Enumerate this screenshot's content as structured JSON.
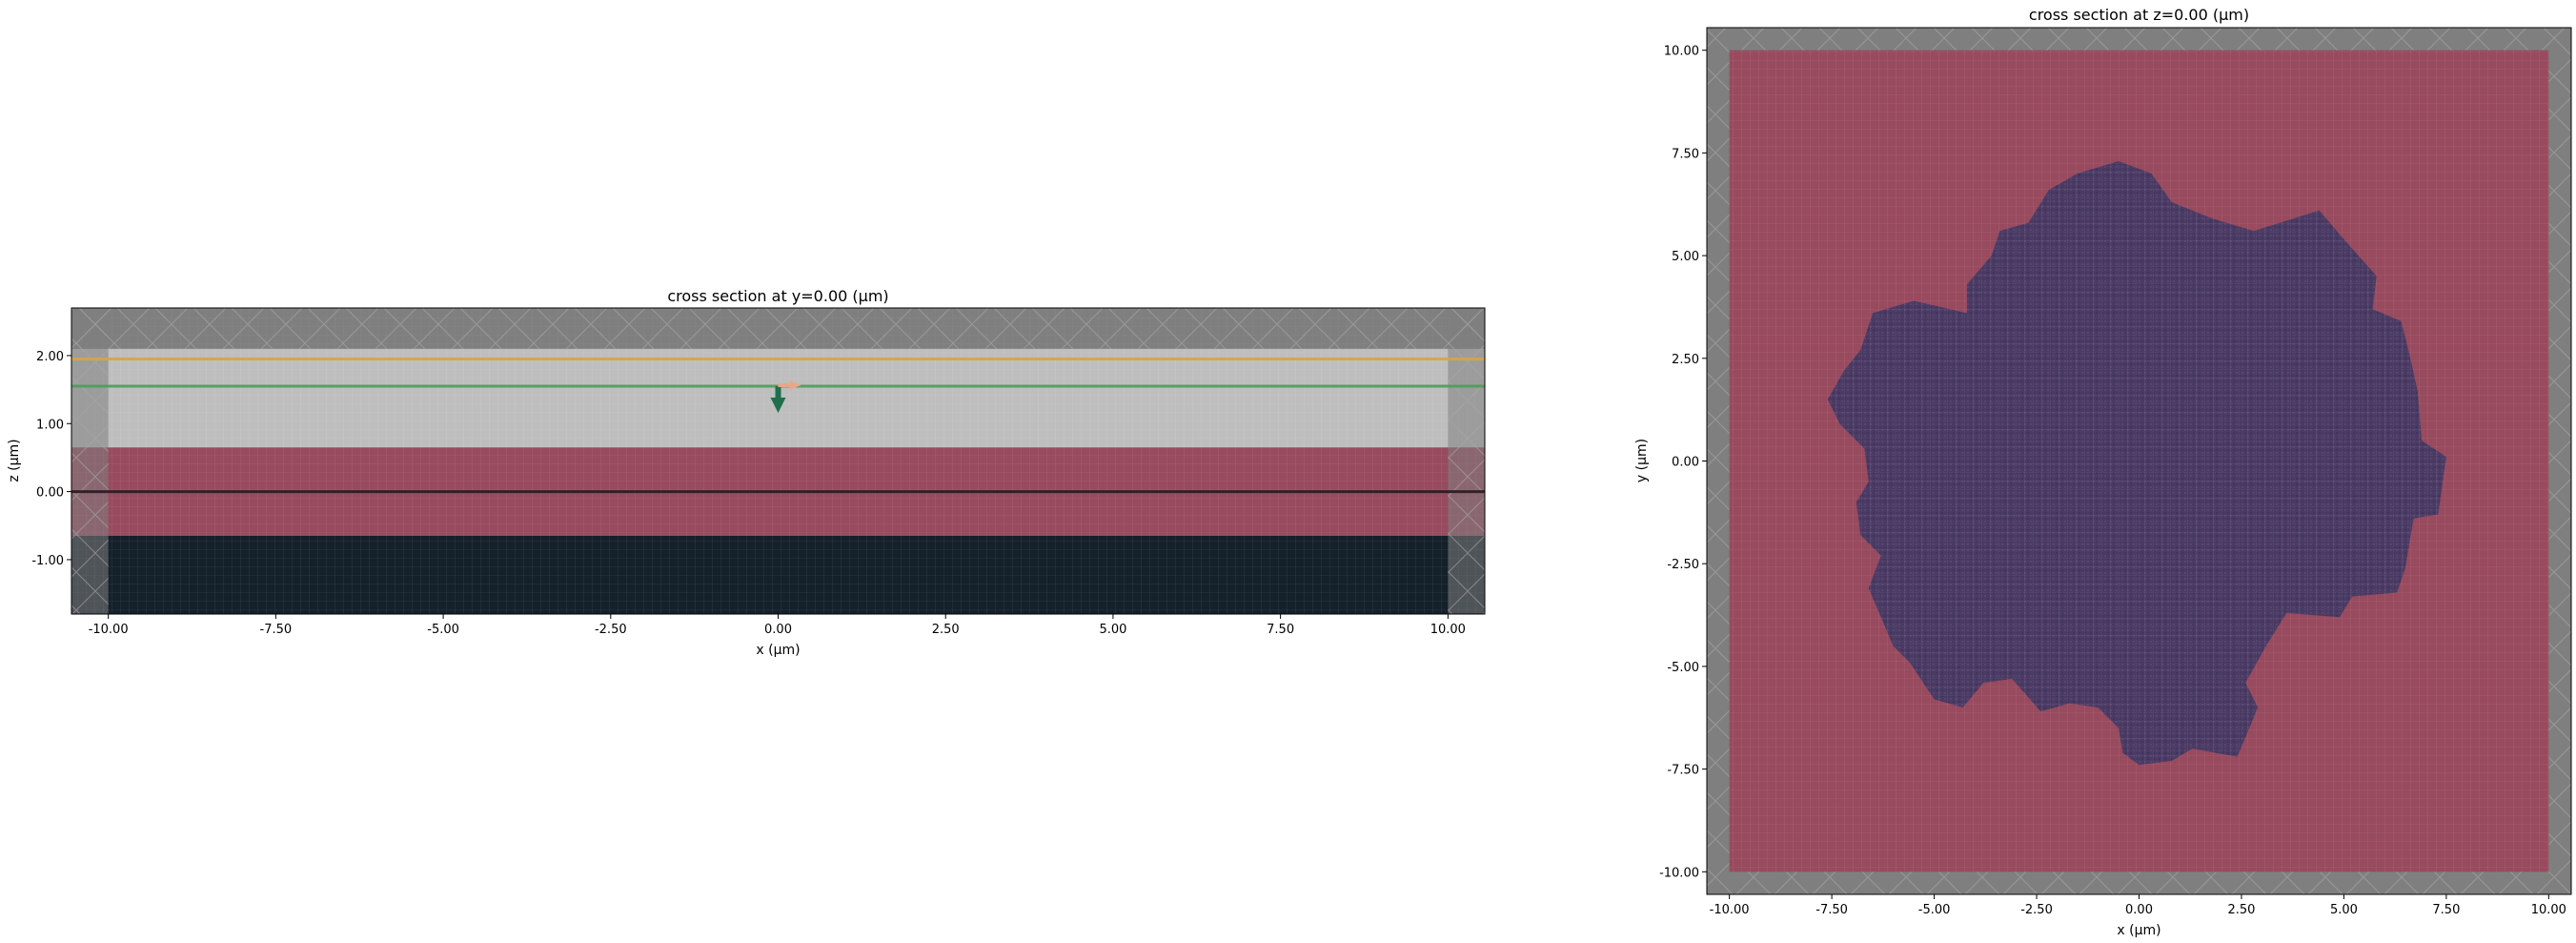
{
  "chart_data": [
    {
      "type": "heatmap",
      "title": "cross section at y=0.00 (μm)",
      "xlabel": "x (μm)",
      "ylabel": "z (μm)",
      "xlim": [
        -10.55,
        10.55
      ],
      "ylim": [
        -1.8,
        2.7
      ],
      "xticks": [
        -10.0,
        -7.5,
        -5.0,
        -2.5,
        0.0,
        2.5,
        5.0,
        7.5,
        10.0
      ],
      "xtick_labels": [
        "-10.00",
        "-7.50",
        "-5.00",
        "-2.50",
        "0.00",
        "2.50",
        "5.00",
        "7.50",
        "10.00"
      ],
      "yticks": [
        -1.0,
        0.0,
        1.0,
        2.0
      ],
      "ytick_labels": [
        "-1.00",
        "0.00",
        "1.00",
        "2.00"
      ],
      "grid": false,
      "layers": [
        {
          "name": "substrate",
          "z0": -1.8,
          "z1": -0.65,
          "color": "#14202a"
        },
        {
          "name": "slab",
          "z0": -0.65,
          "z1": 0.65,
          "color": "#984a5e"
        },
        {
          "name": "background",
          "z0": 0.65,
          "z1": 2.1,
          "color": "#bebebe"
        }
      ],
      "pml": {
        "x_inner": 10.0,
        "z_top": 2.1,
        "z_bottom": -0.65,
        "color": "#7f7f7f"
      },
      "lines": [
        {
          "name": "center plane",
          "z": 0.0,
          "color": "#2a1a22"
        },
        {
          "name": "monitor",
          "z": 1.95,
          "color": "#d9a441"
        },
        {
          "name": "source plane",
          "z": 1.55,
          "color": "#4f9c5a"
        }
      ],
      "source": {
        "x": 0.0,
        "z": 1.55,
        "direction": "-z",
        "color": "#1f6e4c",
        "pol_color": "#e7a88a"
      }
    },
    {
      "type": "heatmap",
      "title": "cross section at z=0.00 (μm)",
      "xlabel": "x (μm)",
      "ylabel": "y (μm)",
      "xlim": [
        -10.55,
        10.55
      ],
      "ylim": [
        -10.55,
        10.55
      ],
      "xticks": [
        -10.0,
        -7.5,
        -5.0,
        -2.5,
        0.0,
        2.5,
        5.0,
        7.5,
        10.0
      ],
      "xtick_labels": [
        "-10.00",
        "-7.50",
        "-5.00",
        "-2.50",
        "0.00",
        "2.50",
        "5.00",
        "7.50",
        "10.00"
      ],
      "yticks": [
        -10.0,
        -7.5,
        -5.0,
        -2.5,
        0.0,
        2.5,
        5.0,
        7.5,
        10.0
      ],
      "ytick_labels": [
        "-10.00",
        "-7.50",
        "-5.00",
        "-2.50",
        "0.00",
        "2.50",
        "5.00",
        "7.50",
        "10.00"
      ],
      "grid": false,
      "slab_color": "#984a5e",
      "shape_color": "#4a3b64",
      "pml": {
        "inner": 10.0,
        "color": "#7f7f7f"
      },
      "shape_outline": [
        [
          -1.5,
          7.0
        ],
        [
          -0.5,
          7.3
        ],
        [
          0.3,
          7.0
        ],
        [
          0.8,
          6.3
        ],
        [
          1.8,
          5.9
        ],
        [
          2.8,
          5.6
        ],
        [
          4.4,
          6.1
        ],
        [
          5.0,
          5.4
        ],
        [
          5.8,
          4.5
        ],
        [
          5.7,
          3.7
        ],
        [
          6.4,
          3.4
        ],
        [
          6.6,
          2.6
        ],
        [
          6.8,
          1.7
        ],
        [
          6.9,
          0.5
        ],
        [
          7.5,
          0.1
        ],
        [
          7.3,
          -1.3
        ],
        [
          6.7,
          -1.4
        ],
        [
          6.5,
          -2.6
        ],
        [
          6.3,
          -3.2
        ],
        [
          5.2,
          -3.3
        ],
        [
          4.9,
          -3.8
        ],
        [
          3.6,
          -3.7
        ],
        [
          3.1,
          -4.5
        ],
        [
          2.6,
          -5.4
        ],
        [
          2.9,
          -6.0
        ],
        [
          2.4,
          -7.2
        ],
        [
          1.3,
          -7.0
        ],
        [
          0.8,
          -7.3
        ],
        [
          0.0,
          -7.4
        ],
        [
          -0.4,
          -7.1
        ],
        [
          -0.5,
          -6.5
        ],
        [
          -1.0,
          -6.0
        ],
        [
          -1.7,
          -5.9
        ],
        [
          -2.4,
          -6.1
        ],
        [
          -3.1,
          -5.3
        ],
        [
          -3.8,
          -5.4
        ],
        [
          -4.3,
          -6.0
        ],
        [
          -5.0,
          -5.8
        ],
        [
          -5.6,
          -4.9
        ],
        [
          -6.0,
          -4.5
        ],
        [
          -6.3,
          -3.8
        ],
        [
          -6.6,
          -3.1
        ],
        [
          -6.3,
          -2.3
        ],
        [
          -6.8,
          -1.8
        ],
        [
          -6.9,
          -1.0
        ],
        [
          -6.6,
          -0.5
        ],
        [
          -6.7,
          0.3
        ],
        [
          -7.3,
          0.9
        ],
        [
          -7.6,
          1.5
        ],
        [
          -7.2,
          2.2
        ],
        [
          -6.8,
          2.7
        ],
        [
          -6.5,
          3.6
        ],
        [
          -5.5,
          3.9
        ],
        [
          -4.2,
          3.6
        ],
        [
          -4.2,
          4.3
        ],
        [
          -3.6,
          5.0
        ],
        [
          -3.4,
          5.6
        ],
        [
          -2.7,
          5.8
        ],
        [
          -2.2,
          6.6
        ]
      ]
    }
  ]
}
